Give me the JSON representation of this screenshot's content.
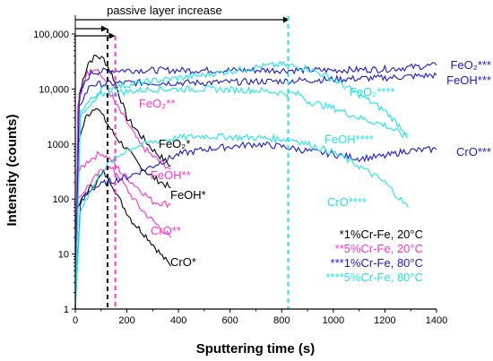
{
  "chart_data": {
    "type": "line",
    "xlabel": "Sputtering time (s)",
    "ylabel": "Intensity (counts)",
    "xlim": [
      0,
      1400
    ],
    "ylim": [
      1,
      100000
    ],
    "y_scale": "log",
    "grid": false,
    "x_ticks": [
      "0",
      "200",
      "400",
      "600",
      "800",
      "1000",
      "1200",
      "1400"
    ],
    "y_ticks": [
      "1",
      "10",
      "100",
      "1000",
      "10,000",
      "100,000"
    ],
    "legend": {
      "placement": "bottom-right",
      "entries": [
        {
          "label": "*1%Cr-Fe, 20°C",
          "color": "#000000"
        },
        {
          "label": "**5%Cr-Fe, 20°C",
          "color": "#ff33cc"
        },
        {
          "label": "***1%Cr-Fe, 80°C",
          "color": "#1a1ad6"
        },
        {
          "label": "****5%Cr-Fe, 80°C",
          "color": "#1fe6e6"
        }
      ]
    },
    "annotations": [
      {
        "text": "passive layer increase",
        "arrow_from": 0,
        "arrow_to": 830,
        "color": "#000000"
      },
      {
        "vline_at": 125,
        "color": "#000000",
        "arrow_from": 0,
        "arrow_to": 125
      },
      {
        "vline_at": 155,
        "color": "#ff33cc",
        "arrow_from": 0,
        "arrow_to": 155
      },
      {
        "vline_at": 825,
        "color": "#1fe6e6"
      }
    ],
    "series": [
      {
        "name": "FeO2*",
        "label": "FeO₂*",
        "color": "#000000",
        "points": [
          [
            0,
            1
          ],
          [
            10,
            4000
          ],
          [
            30,
            15000
          ],
          [
            50,
            30000
          ],
          [
            80,
            40000
          ],
          [
            110,
            35000
          ],
          [
            140,
            20000
          ],
          [
            170,
            8000
          ],
          [
            200,
            3000
          ],
          [
            250,
            1500
          ],
          [
            300,
            800
          ],
          [
            370,
            400
          ]
        ]
      },
      {
        "name": "FeOH*",
        "label": "FeOH*",
        "color": "#000000",
        "points": [
          [
            0,
            1
          ],
          [
            10,
            1000
          ],
          [
            40,
            3000
          ],
          [
            80,
            5000
          ],
          [
            110,
            3000
          ],
          [
            150,
            1500
          ],
          [
            200,
            800
          ],
          [
            250,
            400
          ],
          [
            300,
            250
          ],
          [
            370,
            160
          ]
        ]
      },
      {
        "name": "CrO*",
        "label": "CrO*",
        "color": "#000000",
        "points": [
          [
            0,
            1
          ],
          [
            10,
            70
          ],
          [
            40,
            130
          ],
          [
            80,
            200
          ],
          [
            110,
            300
          ],
          [
            140,
            200
          ],
          [
            170,
            100
          ],
          [
            220,
            40
          ],
          [
            280,
            20
          ],
          [
            330,
            10
          ],
          [
            370,
            6
          ]
        ]
      },
      {
        "name": "FeO2**",
        "label": "FeO₂**",
        "color": "#ff33cc",
        "points": [
          [
            0,
            1
          ],
          [
            10,
            5000
          ],
          [
            40,
            18000
          ],
          [
            80,
            25000
          ],
          [
            110,
            15000
          ],
          [
            150,
            6000
          ],
          [
            200,
            2500
          ],
          [
            250,
            1000
          ],
          [
            300,
            600
          ],
          [
            370,
            350
          ]
        ]
      },
      {
        "name": "FeOH**",
        "label": "FeOH**",
        "color": "#ff33cc",
        "points": [
          [
            0,
            1
          ],
          [
            10,
            300
          ],
          [
            50,
            500
          ],
          [
            100,
            700
          ],
          [
            140,
            500
          ],
          [
            180,
            300
          ],
          [
            250,
            150
          ],
          [
            300,
            90
          ],
          [
            370,
            80
          ]
        ]
      },
      {
        "name": "CrO**",
        "label": "CrO**",
        "color": "#ff33cc",
        "points": [
          [
            0,
            1
          ],
          [
            10,
            100
          ],
          [
            60,
            200
          ],
          [
            120,
            400
          ],
          [
            160,
            300
          ],
          [
            200,
            150
          ],
          [
            250,
            70
          ],
          [
            300,
            40
          ],
          [
            370,
            20
          ]
        ]
      },
      {
        "name": "FeO2***",
        "label": "FeO₂***",
        "color": "#1a1ad6",
        "points": [
          [
            0,
            1
          ],
          [
            15,
            8000
          ],
          [
            60,
            20000
          ],
          [
            150,
            22000
          ],
          [
            400,
            22000
          ],
          [
            800,
            22000
          ],
          [
            1000,
            22000
          ],
          [
            1200,
            23000
          ],
          [
            1400,
            27000
          ]
        ]
      },
      {
        "name": "FeOH***",
        "label": "FeOH***",
        "color": "#1a1ad6",
        "points": [
          [
            0,
            1
          ],
          [
            15,
            5000
          ],
          [
            60,
            12000
          ],
          [
            200,
            13000
          ],
          [
            500,
            13000
          ],
          [
            800,
            14000
          ],
          [
            1000,
            15000
          ],
          [
            1200,
            16000
          ],
          [
            1400,
            18000
          ]
        ]
      },
      {
        "name": "CrO***",
        "label": "CrO***",
        "color": "#1a1ad6",
        "points": [
          [
            0,
            1
          ],
          [
            20,
            80
          ],
          [
            60,
            150
          ],
          [
            120,
            200
          ],
          [
            200,
            250
          ],
          [
            300,
            400
          ],
          [
            400,
            650
          ],
          [
            500,
            800
          ],
          [
            600,
            900
          ],
          [
            700,
            1000
          ],
          [
            800,
            900
          ],
          [
            900,
            750
          ],
          [
            1000,
            650
          ],
          [
            1100,
            550
          ],
          [
            1200,
            600
          ],
          [
            1280,
            750
          ],
          [
            1400,
            800
          ]
        ]
      },
      {
        "name": "FeO2****",
        "label": "FeO₂****",
        "color": "#1fe6e6",
        "points": [
          [
            0,
            1
          ],
          [
            20,
            4000
          ],
          [
            100,
            10000
          ],
          [
            300,
            14000
          ],
          [
            500,
            18000
          ],
          [
            700,
            25000
          ],
          [
            800,
            28000
          ],
          [
            900,
            24000
          ],
          [
            1000,
            15000
          ],
          [
            1100,
            8000
          ],
          [
            1200,
            4000
          ],
          [
            1290,
            1500
          ]
        ]
      },
      {
        "name": "FeOH****",
        "label": "FeOH****",
        "color": "#1fe6e6",
        "points": [
          [
            0,
            1
          ],
          [
            20,
            3000
          ],
          [
            100,
            8000
          ],
          [
            300,
            10000
          ],
          [
            500,
            10000
          ],
          [
            700,
            9500
          ],
          [
            870,
            8000
          ],
          [
            900,
            6000
          ],
          [
            1000,
            4500
          ],
          [
            1100,
            3000
          ],
          [
            1200,
            2200
          ],
          [
            1290,
            1300
          ]
        ]
      },
      {
        "name": "CrO****",
        "label": "CrO****",
        "color": "#1fe6e6",
        "points": [
          [
            0,
            1
          ],
          [
            20,
            60
          ],
          [
            60,
            150
          ],
          [
            120,
            400
          ],
          [
            200,
            800
          ],
          [
            300,
            1100
          ],
          [
            400,
            1300
          ],
          [
            500,
            1400
          ],
          [
            700,
            1300
          ],
          [
            850,
            1200
          ],
          [
            900,
            1000
          ],
          [
            1000,
            700
          ],
          [
            1100,
            400
          ],
          [
            1200,
            200
          ],
          [
            1290,
            70
          ]
        ]
      }
    ]
  }
}
